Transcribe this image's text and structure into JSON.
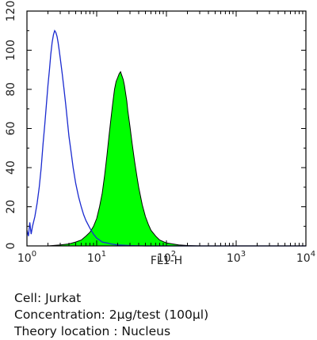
{
  "chart_data": {
    "type": "area",
    "xlabel": "FL1-H",
    "ylabel": "",
    "x_scale": "log",
    "xlim": [
      1,
      10000
    ],
    "ylim": [
      0,
      120
    ],
    "y_ticks": [
      0,
      20,
      40,
      60,
      80,
      100,
      120
    ],
    "x_ticks": [
      {
        "value": 1,
        "base": "10",
        "exp": "0"
      },
      {
        "value": 10,
        "base": "10",
        "exp": "1"
      },
      {
        "value": 100,
        "base": "10",
        "exp": "2"
      },
      {
        "value": 1000,
        "base": "10",
        "exp": "3"
      },
      {
        "value": 10000,
        "base": "10",
        "exp": "4"
      }
    ],
    "grid": false,
    "series": [
      {
        "style": "line",
        "color": "#1a2ad0",
        "x": [
          1.0,
          1.05,
          1.1,
          1.15,
          1.2,
          1.3,
          1.4,
          1.5,
          1.6,
          1.7,
          1.8,
          1.9,
          2.0,
          2.1,
          2.2,
          2.3,
          2.4,
          2.5,
          2.6,
          2.7,
          2.8,
          2.9,
          3.0,
          3.2,
          3.4,
          3.6,
          3.8,
          4.0,
          4.3,
          4.6,
          5.0,
          5.5,
          6.0,
          6.5,
          7.0,
          8.0,
          9.0,
          10,
          11,
          12,
          14,
          16,
          20,
          30,
          50,
          100,
          200,
          500,
          1000,
          10000
        ],
        "y": [
          8,
          5,
          12,
          6,
          10,
          15,
          22,
          30,
          40,
          52,
          62,
          72,
          82,
          90,
          98,
          104,
          108,
          110,
          109,
          107,
          104,
          100,
          96,
          88,
          80,
          72,
          64,
          56,
          48,
          40,
          32,
          25,
          20,
          16,
          13,
          9,
          6,
          4,
          3,
          2,
          1.5,
          1,
          0.5,
          0.2,
          0,
          0,
          0,
          0,
          0,
          0
        ]
      },
      {
        "style": "filled",
        "color": "#00ff00",
        "edge_color": "#000000",
        "x": [
          1.0,
          2.0,
          3.0,
          4.0,
          5.0,
          6.0,
          7.0,
          8.0,
          9.0,
          10,
          11,
          12,
          13,
          14,
          15,
          16,
          17,
          18,
          19,
          20,
          21,
          22,
          23,
          24,
          25,
          26,
          27,
          28,
          30,
          32,
          35,
          38,
          40,
          45,
          50,
          55,
          60,
          70,
          80,
          100,
          150,
          200,
          300,
          500,
          1000,
          10000
        ],
        "y": [
          0,
          0,
          0.5,
          1,
          2,
          3,
          5,
          7,
          10,
          14,
          20,
          27,
          36,
          46,
          56,
          65,
          73,
          80,
          84,
          86,
          88,
          89,
          87,
          85,
          82,
          78,
          74,
          69,
          61,
          53,
          43,
          35,
          30,
          21,
          15,
          11,
          8,
          5,
          3,
          1.5,
          0.5,
          0.2,
          0,
          0,
          0,
          0
        ]
      }
    ]
  },
  "caption": {
    "cell": "Cell: Jurkat",
    "concentration": "Concentration: 2µg/test (100µl)",
    "location": "Theory location : Nucleus"
  }
}
